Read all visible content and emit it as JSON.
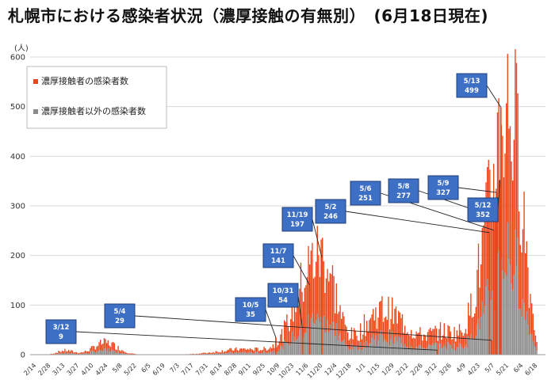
{
  "chart_data": {
    "type": "bar",
    "stacked": true,
    "title": "札幌市における感染者状況（濃厚接触の有無別）　(6月18日現在)",
    "ylabel_unit": "(人)",
    "ylim": [
      0,
      600
    ],
    "yticks": [
      0,
      100,
      200,
      300,
      400,
      500,
      600
    ],
    "grid": true,
    "legend_position": "top-left",
    "x_tick_labels": [
      "2/14",
      "2/28",
      "3/13",
      "3/27",
      "4/10",
      "4/24",
      "5/8",
      "5/22",
      "6/5",
      "6/19",
      "7/3",
      "7/17",
      "7/31",
      "8/14",
      "8/28",
      "9/11",
      "9/25",
      "10/9",
      "10/23",
      "11/6",
      "11/20",
      "12/4",
      "12/18",
      "1/1",
      "1/15",
      "1/29",
      "2/12",
      "2/26",
      "3/12",
      "3/26",
      "4/9",
      "4/23",
      "5/7",
      "5/21",
      "6/4",
      "6/18"
    ],
    "series": [
      {
        "name": "濃厚接触者の感染者数",
        "color": "#E8471C"
      },
      {
        "name": "濃厚接触者以外の感染者数",
        "color": "#8C8C8C"
      }
    ],
    "annotations": [
      {
        "date": "3/12",
        "value": 9
      },
      {
        "date": "5/4",
        "value": 29
      },
      {
        "date": "10/5",
        "value": 35
      },
      {
        "date": "10/31",
        "value": 54
      },
      {
        "date": "11/7",
        "value": 141
      },
      {
        "date": "11/19",
        "value": 197
      },
      {
        "date": "5/2",
        "value": 246
      },
      {
        "date": "5/6",
        "value": 251
      },
      {
        "date": "5/8",
        "value": 277
      },
      {
        "date": "5/9",
        "value": 327
      },
      {
        "date": "5/12",
        "value": 352
      },
      {
        "date": "5/13",
        "value": 499
      }
    ]
  },
  "colors": {
    "accent_red": "#E8471C",
    "gray": "#8C8C8C",
    "callout_fill": "#3D6FC4",
    "callout_border": "#1F3F7A",
    "grid": "#D9D9D9"
  }
}
